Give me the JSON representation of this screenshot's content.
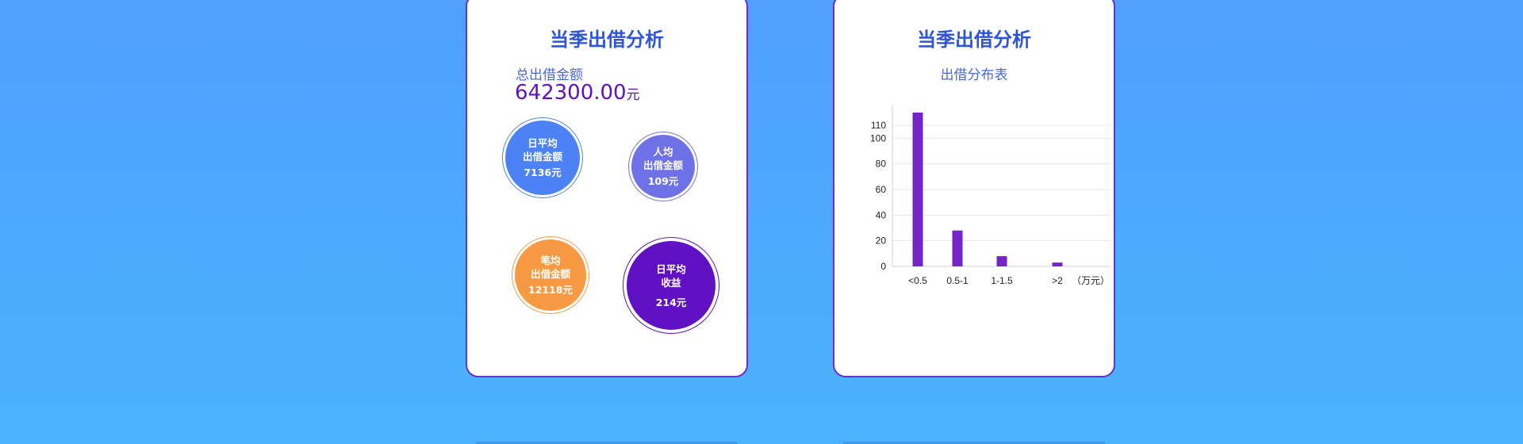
{
  "left_card": {
    "title": "当季出借分析",
    "total_label": "总出借金额",
    "total_value": "642300.00",
    "total_unit": "元",
    "bubbles": [
      {
        "line1": "日平均",
        "line2": "出借金额",
        "value": "7136元",
        "color": "#4c82f5"
      },
      {
        "line1": "人均",
        "line2": "出借金额",
        "value": "109元",
        "color": "#6f72e6"
      },
      {
        "line1": "笔均",
        "line2": "出借金额",
        "value": "12118元",
        "color": "#f79a43"
      },
      {
        "line1": "日平均",
        "line2": "收益",
        "value": "214元",
        "color": "#5f11c3"
      }
    ]
  },
  "right_card": {
    "title": "当季出借分析",
    "subtitle": "出借分布表"
  },
  "chart_data": {
    "type": "bar",
    "categories": [
      "<0.5",
      "0.5-1",
      "1-1.5",
      ">2"
    ],
    "values": [
      120,
      28,
      8,
      3
    ],
    "xlabel": "（万元）",
    "ylabel": "",
    "yticks": [
      0,
      20,
      40,
      60,
      80,
      100,
      110
    ],
    "ylim": [
      0,
      120
    ],
    "grid": true,
    "bar_color": "#7424c9"
  }
}
